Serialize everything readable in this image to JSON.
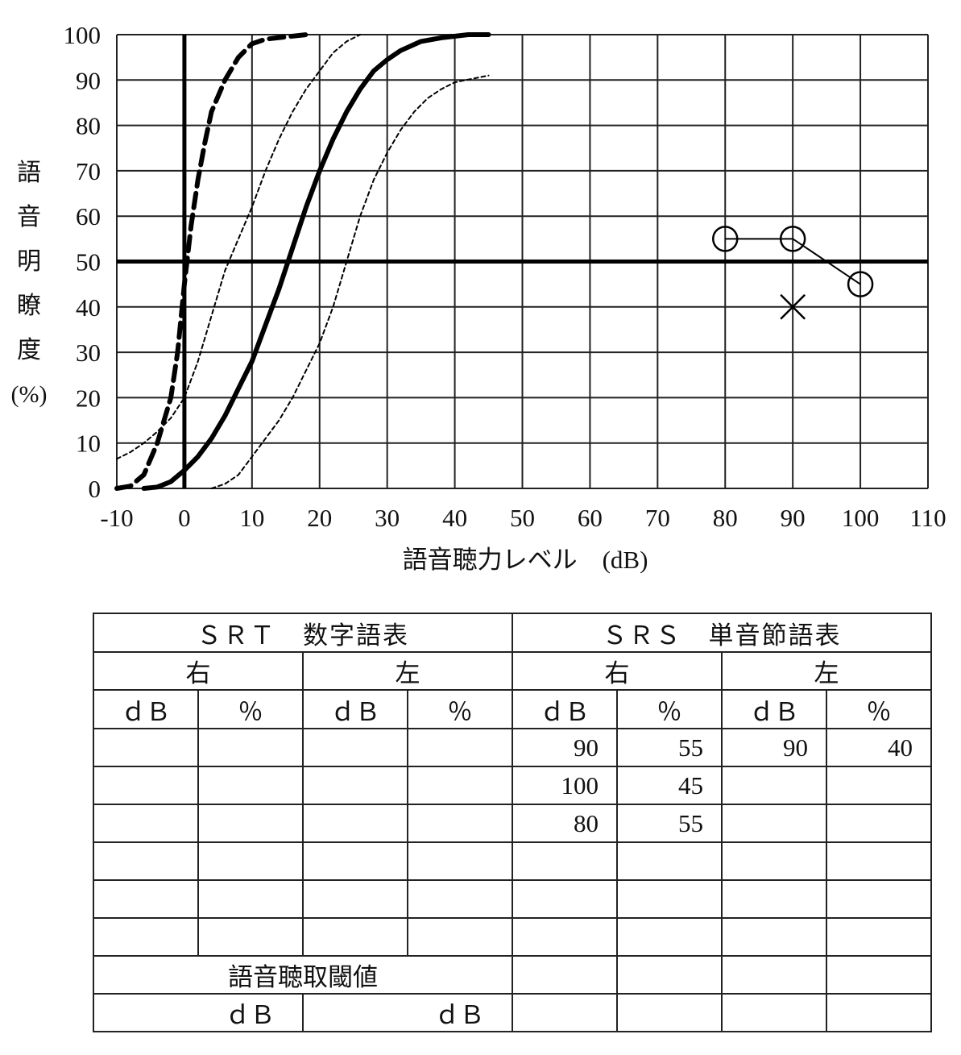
{
  "chart_data": {
    "type": "line",
    "ylabel": [
      "語",
      "音",
      "明",
      "瞭",
      "度",
      "(%)"
    ],
    "xlabel": "語音聴力レベル　(dB)",
    "xlim": [
      -10,
      110
    ],
    "ylim": [
      0,
      100
    ],
    "x_ticks": [
      "-10",
      "0",
      "10",
      "20",
      "30",
      "40",
      "50",
      "60",
      "70",
      "80",
      "90",
      "100",
      "110"
    ],
    "y_ticks": [
      "0",
      "10",
      "20",
      "30",
      "40",
      "50",
      "60",
      "70",
      "80",
      "90",
      "100"
    ],
    "grid": true,
    "reference_lines": {
      "vertical_x": 0,
      "horizontal_y": 50
    },
    "reference_curves": [
      {
        "style": "bold-dashed",
        "x": [
          -10,
          -8,
          -6,
          -4,
          -2,
          -1,
          0,
          1,
          2,
          3,
          4,
          6,
          8,
          10,
          12,
          15,
          18
        ],
        "y": [
          0,
          0.5,
          3,
          10,
          20,
          30,
          45,
          58,
          68,
          76,
          83,
          90,
          95,
          98,
          99,
          99.5,
          100
        ]
      },
      {
        "style": "bold-solid",
        "x": [
          -6,
          -4,
          -2,
          0,
          2,
          4,
          6,
          8,
          10,
          12,
          14,
          16,
          18,
          20,
          22,
          24,
          26,
          28,
          30,
          32,
          35,
          38,
          42,
          45
        ],
        "y": [
          0,
          0.3,
          1.5,
          4,
          7,
          11,
          16,
          22,
          28,
          36,
          44,
          53,
          62,
          70,
          77,
          83,
          88,
          92,
          94.5,
          96.5,
          98.5,
          99.3,
          100,
          100
        ]
      },
      {
        "style": "thin-dotted",
        "x": [
          -10,
          -8,
          -6,
          -4,
          -2,
          0,
          2,
          4,
          6,
          8,
          10,
          12,
          14,
          16,
          18,
          20,
          22,
          24,
          26
        ],
        "y": [
          6.5,
          8,
          10,
          12.5,
          15.5,
          20,
          28,
          38,
          48,
          55,
          62,
          70,
          77,
          83,
          88,
          92,
          96,
          98.5,
          100
        ]
      },
      {
        "style": "thin-dotted",
        "x": [
          4,
          6,
          8,
          10,
          12,
          14,
          16,
          18,
          20,
          22,
          24,
          26,
          28,
          30,
          32,
          34,
          36,
          38,
          40,
          45
        ],
        "y": [
          0,
          1,
          3,
          7,
          11,
          15,
          20,
          26,
          32,
          40,
          50,
          60,
          68,
          74,
          79,
          83,
          86,
          88,
          89.5,
          91
        ]
      }
    ],
    "series": [
      {
        "name": "右",
        "marker": "circle",
        "connected": true,
        "x": [
          80,
          90,
          100
        ],
        "y": [
          55,
          55,
          45
        ]
      },
      {
        "name": "左",
        "marker": "cross",
        "connected": false,
        "x": [
          90
        ],
        "y": [
          40
        ]
      }
    ]
  },
  "table": {
    "srt_title": "ＳＲＴ　数字語表",
    "srs_title": "ＳＲＳ　単音節語表",
    "right": "右",
    "left": "左",
    "db": "ｄＢ",
    "pct": "％",
    "rows": [
      [
        "",
        "",
        "",
        "",
        "90",
        "55",
        "90",
        "40"
      ],
      [
        "",
        "",
        "",
        "",
        "100",
        "45",
        "",
        ""
      ],
      [
        "",
        "",
        "",
        "",
        "80",
        "55",
        "",
        ""
      ],
      [
        "",
        "",
        "",
        "",
        "",
        "",
        "",
        ""
      ],
      [
        "",
        "",
        "",
        "",
        "",
        "",
        "",
        ""
      ],
      [
        "",
        "",
        "",
        "",
        "",
        "",
        "",
        ""
      ]
    ],
    "threshold_label": "語音聴取閾値",
    "threshold_unit_right": "ｄＢ",
    "threshold_unit_left": "ｄＢ"
  }
}
